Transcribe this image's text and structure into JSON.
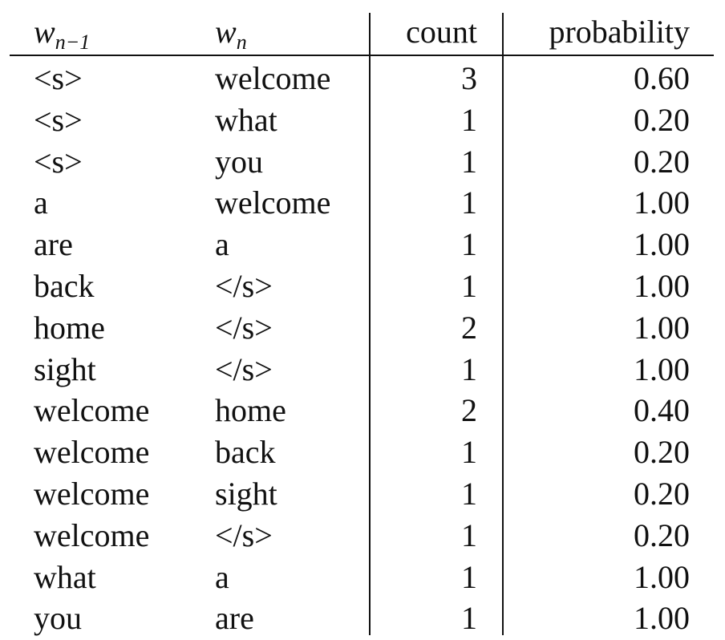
{
  "table": {
    "headers": {
      "prev_word": "w",
      "prev_word_sub": "n−1",
      "word": "w",
      "word_sub": "n",
      "count": "count",
      "probability": "probability"
    },
    "rows": [
      {
        "prev": "<s>",
        "word": "welcome",
        "count": "3",
        "prob": "0.60"
      },
      {
        "prev": "<s>",
        "word": "what",
        "count": "1",
        "prob": "0.20"
      },
      {
        "prev": "<s>",
        "word": "you",
        "count": "1",
        "prob": "0.20"
      },
      {
        "prev": "a",
        "word": "welcome",
        "count": "1",
        "prob": "1.00"
      },
      {
        "prev": "are",
        "word": "a",
        "count": "1",
        "prob": "1.00"
      },
      {
        "prev": "back",
        "word": "</s>",
        "count": "1",
        "prob": "1.00"
      },
      {
        "prev": "home",
        "word": "</s>",
        "count": "2",
        "prob": "1.00"
      },
      {
        "prev": "sight",
        "word": "</s>",
        "count": "1",
        "prob": "1.00"
      },
      {
        "prev": "welcome",
        "word": "home",
        "count": "2",
        "prob": "0.40"
      },
      {
        "prev": "welcome",
        "word": "back",
        "count": "1",
        "prob": "0.20"
      },
      {
        "prev": "welcome",
        "word": "sight",
        "count": "1",
        "prob": "0.20"
      },
      {
        "prev": "welcome",
        "word": "</s>",
        "count": "1",
        "prob": "0.20"
      },
      {
        "prev": "what",
        "word": "a",
        "count": "1",
        "prob": "1.00"
      },
      {
        "prev": "you",
        "word": "are",
        "count": "1",
        "prob": "1.00"
      }
    ]
  }
}
